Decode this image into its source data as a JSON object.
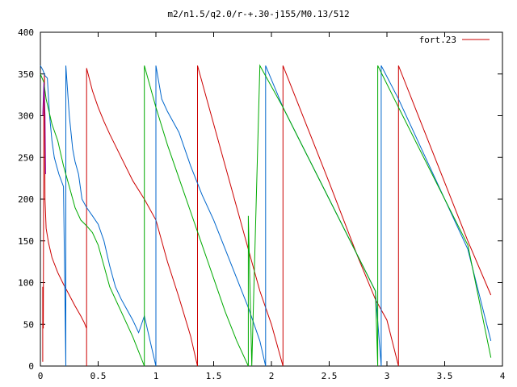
{
  "chart_data": {
    "type": "line",
    "title": "m2/n1.5/q2.0/r-+.30-j155/M0.13/512",
    "xlabel": "",
    "ylabel": "",
    "xlim": [
      0,
      4
    ],
    "ylim": [
      0,
      400
    ],
    "x_ticks": [
      "0",
      "0.5",
      "1",
      "1.5",
      "2",
      "2.5",
      "3",
      "3.5",
      "4"
    ],
    "y_ticks": [
      "0",
      "50",
      "100",
      "150",
      "200",
      "250",
      "300",
      "350",
      "400"
    ],
    "grid": false,
    "legend_position": "top-right",
    "series": [
      {
        "name": "fort.23",
        "color": "#cc0000",
        "points": [
          [
            0.02,
            5
          ],
          [
            0.02,
            95
          ],
          [
            0.025,
            45
          ],
          [
            0.03,
            330
          ],
          [
            0.035,
            350
          ],
          [
            0.04,
            200
          ],
          [
            0.05,
            165
          ],
          [
            0.07,
            148
          ],
          [
            0.1,
            130
          ],
          [
            0.15,
            112
          ],
          [
            0.2,
            98
          ],
          [
            0.25,
            85
          ],
          [
            0.3,
            72
          ],
          [
            0.35,
            60
          ],
          [
            0.38,
            52
          ],
          [
            0.4,
            45
          ],
          [
            0.4,
            0
          ],
          [
            0.4,
            357
          ],
          [
            0.45,
            330
          ],
          [
            0.5,
            310
          ],
          [
            0.55,
            293
          ],
          [
            0.6,
            278
          ],
          [
            0.7,
            250
          ],
          [
            0.8,
            222
          ],
          [
            0.9,
            200
          ],
          [
            1.0,
            175
          ],
          [
            1.1,
            125
          ],
          [
            1.2,
            82
          ],
          [
            1.3,
            36
          ],
          [
            1.36,
            0
          ],
          [
            1.36,
            360
          ],
          [
            1.5,
            290
          ],
          [
            1.6,
            240
          ],
          [
            1.7,
            190
          ],
          [
            1.8,
            140
          ],
          [
            1.9,
            90
          ],
          [
            2.0,
            50
          ],
          [
            2.1,
            0
          ],
          [
            2.1,
            360
          ],
          [
            2.5,
            220
          ],
          [
            2.75,
            130
          ],
          [
            2.9,
            80
          ],
          [
            3.0,
            55
          ],
          [
            3.1,
            0
          ],
          [
            3.1,
            360
          ],
          [
            3.3,
            290
          ],
          [
            3.5,
            220
          ],
          [
            3.7,
            150
          ],
          [
            3.9,
            85
          ],
          [
            3.9,
            85
          ]
        ]
      },
      {
        "name": "",
        "color": "#0066cc",
        "points": [
          [
            0.0,
            360
          ],
          [
            0.02,
            355
          ],
          [
            0.04,
            348
          ],
          [
            0.06,
            345
          ],
          [
            0.08,
            300
          ],
          [
            0.1,
            270
          ],
          [
            0.12,
            250
          ],
          [
            0.14,
            240
          ],
          [
            0.16,
            230
          ],
          [
            0.2,
            215
          ],
          [
            0.22,
            0
          ],
          [
            0.22,
            360
          ],
          [
            0.25,
            300
          ],
          [
            0.28,
            260
          ],
          [
            0.3,
            245
          ],
          [
            0.33,
            230
          ],
          [
            0.36,
            200
          ],
          [
            0.4,
            190
          ],
          [
            0.45,
            180
          ],
          [
            0.5,
            170
          ],
          [
            0.55,
            150
          ],
          [
            0.6,
            120
          ],
          [
            0.65,
            95
          ],
          [
            0.7,
            80
          ],
          [
            0.8,
            55
          ],
          [
            0.85,
            40
          ],
          [
            0.9,
            60
          ],
          [
            0.95,
            30
          ],
          [
            1.0,
            0
          ],
          [
            1.0,
            360
          ],
          [
            1.05,
            320
          ],
          [
            1.1,
            305
          ],
          [
            1.2,
            280
          ],
          [
            1.3,
            240
          ],
          [
            1.4,
            205
          ],
          [
            1.5,
            175
          ],
          [
            1.6,
            140
          ],
          [
            1.7,
            105
          ],
          [
            1.8,
            70
          ],
          [
            1.9,
            30
          ],
          [
            1.95,
            0
          ],
          [
            1.95,
            360
          ],
          [
            2.1,
            310
          ],
          [
            2.3,
            255
          ],
          [
            2.5,
            200
          ],
          [
            2.7,
            145
          ],
          [
            2.9,
            90
          ],
          [
            2.95,
            0
          ],
          [
            2.95,
            360
          ],
          [
            3.1,
            320
          ],
          [
            3.3,
            260
          ],
          [
            3.5,
            200
          ],
          [
            3.7,
            140
          ],
          [
            3.9,
            30
          ]
        ]
      },
      {
        "name": "",
        "color": "#00aa00",
        "points": [
          [
            0.0,
            350
          ],
          [
            0.03,
            340
          ],
          [
            0.05,
            320
          ],
          [
            0.1,
            290
          ],
          [
            0.15,
            270
          ],
          [
            0.2,
            240
          ],
          [
            0.25,
            215
          ],
          [
            0.3,
            190
          ],
          [
            0.35,
            175
          ],
          [
            0.4,
            168
          ],
          [
            0.45,
            160
          ],
          [
            0.5,
            145
          ],
          [
            0.55,
            120
          ],
          [
            0.6,
            95
          ],
          [
            0.7,
            65
          ],
          [
            0.8,
            35
          ],
          [
            0.9,
            0
          ],
          [
            0.9,
            360
          ],
          [
            1.0,
            310
          ],
          [
            1.1,
            265
          ],
          [
            1.2,
            225
          ],
          [
            1.3,
            185
          ],
          [
            1.4,
            145
          ],
          [
            1.5,
            105
          ],
          [
            1.6,
            65
          ],
          [
            1.7,
            30
          ],
          [
            1.8,
            0
          ],
          [
            1.8,
            180
          ],
          [
            1.83,
            0
          ],
          [
            1.9,
            360
          ],
          [
            2.1,
            310
          ],
          [
            2.3,
            255
          ],
          [
            2.5,
            200
          ],
          [
            2.7,
            145
          ],
          [
            2.9,
            90
          ],
          [
            2.92,
            0
          ],
          [
            2.92,
            360
          ],
          [
            3.1,
            310
          ],
          [
            3.3,
            255
          ],
          [
            3.5,
            200
          ],
          [
            3.7,
            145
          ],
          [
            3.9,
            10
          ]
        ]
      },
      {
        "name": "",
        "color": "#8800aa",
        "points": [
          [
            0.02,
            300
          ],
          [
            0.03,
            340
          ],
          [
            0.04,
            300
          ],
          [
            0.045,
            230
          ]
        ]
      }
    ]
  }
}
